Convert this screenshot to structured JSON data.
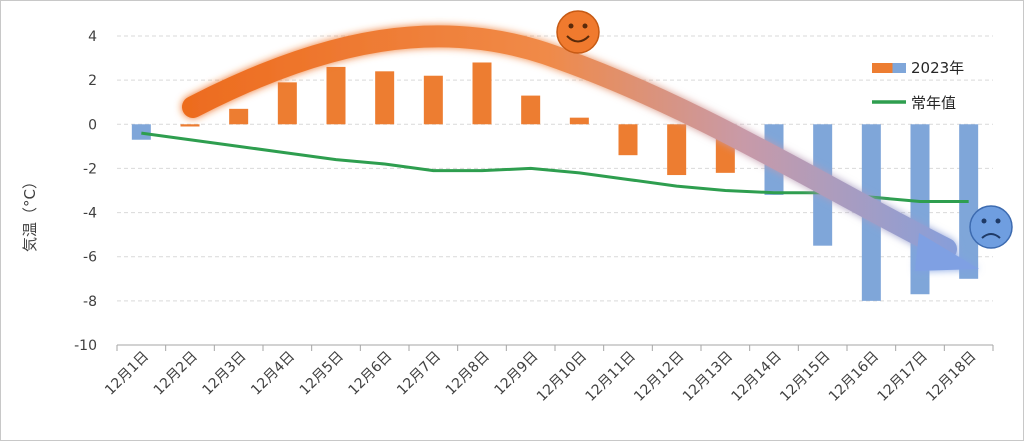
{
  "chart_data": {
    "type": "bar",
    "ylabel": "気温（°C）",
    "ylim": [
      -10,
      4
    ],
    "yticks": [
      4,
      2,
      0,
      -2,
      -4,
      -6,
      -8,
      -10
    ],
    "grid": true,
    "legend_position": "top-right",
    "categories": [
      "12月1日",
      "12月2日",
      "12月3日",
      "12月4日",
      "12月5日",
      "12月6日",
      "12月7日",
      "12月8日",
      "12月9日",
      "12月10日",
      "12月11日",
      "12月12日",
      "12月13日",
      "12月14日",
      "12月15日",
      "12月16日",
      "12月17日",
      "12月18日"
    ],
    "series": [
      {
        "name": "2023年",
        "kind": "bar",
        "values": [
          -0.7,
          -0.1,
          0.7,
          1.9,
          2.6,
          2.4,
          2.2,
          2.8,
          1.3,
          0.3,
          -1.4,
          -2.3,
          -2.2,
          -3.2,
          -5.5,
          -8.0,
          -7.7,
          -7.0
        ],
        "colors": [
          "#7fa6d9",
          "#ed7d31",
          "#ed7d31",
          "#ed7d31",
          "#ed7d31",
          "#ed7d31",
          "#ed7d31",
          "#ed7d31",
          "#ed7d31",
          "#ed7d31",
          "#ed7d31",
          "#ed7d31",
          "#ed7d31",
          "#7fa6d9",
          "#7fa6d9",
          "#7fa6d9",
          "#7fa6d9",
          "#7fa6d9"
        ]
      },
      {
        "name": "常年值",
        "kind": "line",
        "color": "#2e9e4f",
        "values": [
          -0.4,
          -0.7,
          -1.0,
          -1.3,
          -1.6,
          -1.8,
          -2.1,
          -2.1,
          -2.0,
          -2.2,
          -2.5,
          -2.8,
          -3.0,
          -3.1,
          -3.1,
          -3.3,
          -3.5,
          -3.5
        ]
      }
    ],
    "annotations": [
      {
        "type": "trend-arrow",
        "description": "orange-to-blue curved trend arrow"
      },
      {
        "type": "icon",
        "name": "smiley-face-icon"
      },
      {
        "type": "icon",
        "name": "sad-face-icon"
      }
    ]
  },
  "colors": {
    "orange": "#ed7d31",
    "blue": "#7fa6d9",
    "green": "#2e9e4f",
    "grid": "#d9d9d9"
  }
}
